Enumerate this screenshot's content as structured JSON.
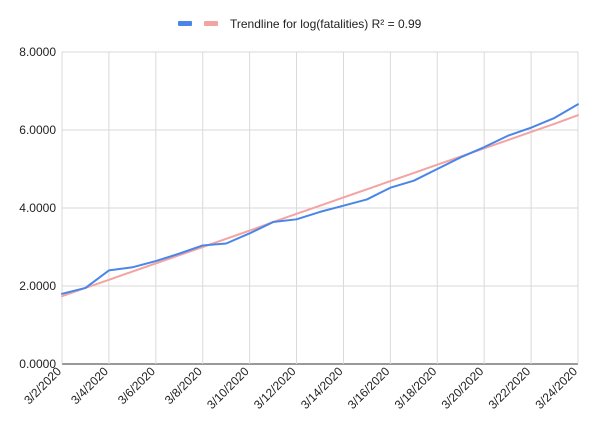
{
  "chart_data": {
    "type": "line",
    "title": "",
    "xlabel": "",
    "ylabel": "",
    "x": [
      "3/2/2020",
      "3/3/2020",
      "3/4/2020",
      "3/5/2020",
      "3/6/2020",
      "3/7/2020",
      "3/8/2020",
      "3/9/2020",
      "3/10/2020",
      "3/11/2020",
      "3/12/2020",
      "3/13/2020",
      "3/14/2020",
      "3/15/2020",
      "3/16/2020",
      "3/17/2020",
      "3/18/2020",
      "3/19/2020",
      "3/20/2020",
      "3/21/2020",
      "3/22/2020",
      "3/23/2020",
      "3/24/2020"
    ],
    "x_tick_labels": [
      "3/2/2020",
      "3/4/2020",
      "3/6/2020",
      "3/8/2020",
      "3/10/2020",
      "3/12/2020",
      "3/14/2020",
      "3/16/2020",
      "3/18/2020",
      "3/20/2020",
      "3/22/2020",
      "3/24/2020"
    ],
    "y_tick_labels": [
      "0.0000",
      "2.0000",
      "4.0000",
      "6.0000",
      "8.0000"
    ],
    "ylim": [
      0,
      8
    ],
    "grid": true,
    "legend_position": "top-center",
    "series": [
      {
        "legend": "",
        "color": "#4a86e8",
        "values": [
          1.8,
          1.95,
          2.4,
          2.48,
          2.64,
          2.83,
          3.04,
          3.09,
          3.35,
          3.64,
          3.71,
          3.9,
          4.06,
          4.22,
          4.52,
          4.7,
          5.0,
          5.3,
          5.56,
          5.85,
          6.06,
          6.31,
          6.66
        ]
      },
      {
        "legend": "Trendline for log(fatalities) R² = 0.99",
        "color": "#f4a3a3",
        "values": [
          1.74,
          1.95,
          2.16,
          2.37,
          2.58,
          2.79,
          3.0,
          3.21,
          3.42,
          3.64,
          3.85,
          4.06,
          4.27,
          4.48,
          4.69,
          4.9,
          5.11,
          5.32,
          5.53,
          5.74,
          5.95,
          6.16,
          6.38
        ]
      }
    ]
  }
}
